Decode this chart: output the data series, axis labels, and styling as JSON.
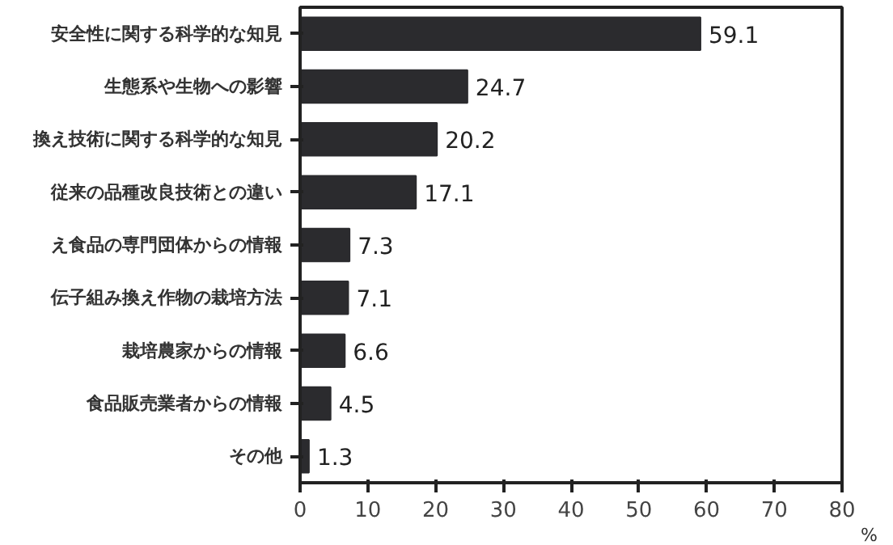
{
  "chart_data": {
    "type": "bar",
    "orientation": "horizontal",
    "categories": [
      "安全性に関する科学的な知見",
      "生態系や生物への影響",
      "換え技術に関する科学的な知見",
      "従来の品種改良技術との違い",
      "え食品の専門団体からの情報",
      "伝子組み換え作物の栽培方法",
      "栽培農家からの情報",
      "食品販売業者からの情報",
      "その他"
    ],
    "values": [
      59.1,
      24.7,
      20.2,
      17.1,
      7.3,
      7.1,
      6.6,
      4.5,
      1.3
    ],
    "color": "#2b2b2e",
    "data_labels": true,
    "xlim": [
      0,
      80
    ],
    "xticks": [
      0,
      10,
      20,
      30,
      40,
      50,
      60,
      70,
      80
    ],
    "xlabel": "%",
    "grid": false
  }
}
